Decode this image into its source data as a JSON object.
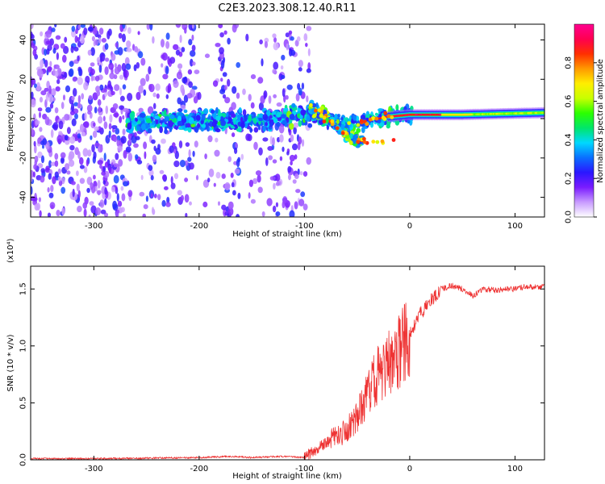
{
  "title": "C2E3.2023.308.12.40.R11",
  "chart_data": [
    {
      "type": "heatmap",
      "xlabel": "Height of straight line (km)",
      "ylabel": "Frequency (Hz)",
      "xlim": [
        -360,
        128
      ],
      "ylim": [
        -50,
        48
      ],
      "xticks": [
        "-300",
        "-200",
        "-100",
        "0",
        "100"
      ],
      "yticks": [
        "-40",
        "-20",
        "0",
        "20",
        "40"
      ],
      "colorbar": {
        "label": "Normalized spectral amplitude",
        "range": [
          0,
          1
        ],
        "ticks": [
          "0.0",
          "0.2",
          "0.4",
          "0.6",
          "0.8"
        ],
        "colormap": [
          "#ffffff",
          "#c89bff",
          "#7a1cff",
          "#2b17ff",
          "#0a6fff",
          "#00d8ff",
          "#00e66a",
          "#2bff00",
          "#c8ff00",
          "#ffee00",
          "#ff9900",
          "#ff3000",
          "#ff0050",
          "#ff0090"
        ]
      },
      "features": {
        "noise_region": [
          -360,
          -95
        ],
        "central_ridge": [
          [
            -265,
            -2
          ],
          [
            -200,
            -1
          ],
          [
            -150,
            -1
          ],
          [
            -100,
            2
          ],
          [
            -80,
            0
          ],
          [
            -60,
            -3
          ],
          [
            -40,
            -1
          ],
          [
            -20,
            1
          ],
          [
            0,
            2
          ],
          [
            50,
            2
          ],
          [
            128,
            3
          ]
        ],
        "branch_track": [
          [
            -95,
            6
          ],
          [
            -80,
            2
          ],
          [
            -68,
            -5
          ],
          [
            -55,
            -10
          ],
          [
            -45,
            -12
          ]
        ]
      }
    },
    {
      "type": "line",
      "xlabel": "Height of straight line (km)",
      "ylabel": "SNR (10 * v/v)",
      "multiplier": "(x10⁴)",
      "xlim": [
        -360,
        128
      ],
      "ylim": [
        0,
        1.7
      ],
      "xticks": [
        "-300",
        "-200",
        "-100",
        "0",
        "100"
      ],
      "yticks": [
        "0.0",
        "0.5",
        "1.0",
        "1.5"
      ],
      "color": "#ee3333",
      "trend": {
        "x": [
          -360,
          -300,
          -250,
          -200,
          -170,
          -150,
          -120,
          -100,
          -80,
          -60,
          -50,
          -40,
          -30,
          -20,
          -10,
          0,
          10,
          20,
          30,
          40,
          50,
          60,
          70,
          80,
          100,
          110,
          128
        ],
        "y": [
          0.01,
          0.01,
          0.015,
          0.02,
          0.03,
          0.02,
          0.03,
          0.02,
          0.15,
          0.25,
          0.4,
          0.6,
          0.75,
          0.85,
          0.95,
          1.1,
          1.28,
          1.4,
          1.5,
          1.53,
          1.5,
          1.44,
          1.5,
          1.49,
          1.5,
          1.52,
          1.52
        ]
      }
    }
  ]
}
